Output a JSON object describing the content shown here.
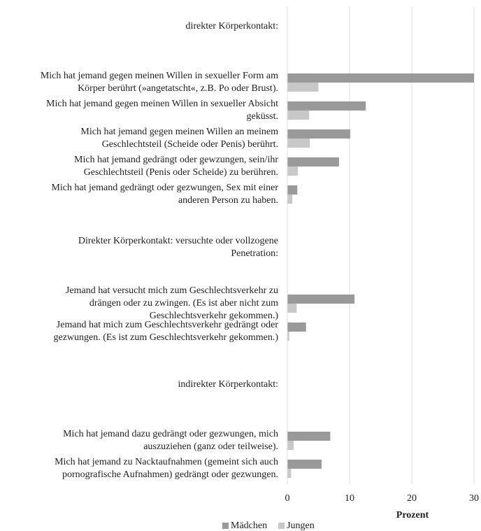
{
  "chart_data": {
    "type": "hbar",
    "categories": [
      "direkter Körperkontakt:",
      "Mich hat jemand gegen meinen Willen in sexueller Form am\nKörper berührt (»angetatscht«, z.B. Po oder Brust).",
      "Mich hat jemand gegen meinen Willen in sexueller Absicht\ngeküsst.",
      "Mich hat jemand gegen meinen Willen an meinem\nGeschlechtsteil (Scheide oder Penis) berührt.",
      "Mich hat jemand gedrängt oder gewzungen, sein/ihr\nGeschlechtsteil (Penis oder Scheide) zu berühren.",
      "Mich hat jemand gedrängt oder gezwungen, Sex mit einer\nanderen Person zu haben.",
      "Direkter Körperkontakt: versuchte oder vollzogene\nPenetration:",
      "Jemand hat versucht mich zum Geschlechtsverkehr zu\ndrängen oder zu zwingen. (Es ist aber nicht zum\nGeschlechtsverkehr gekommen.)",
      "Jemand hat mich zum Geschlechtsverkehr gedrängt oder\ngezwungen. (Es ist zum Geschlechtsverkehr gekommen.)",
      "indirekter Körperkontakt:",
      "Mich hat jemand dazu gedrängt oder gezwungen, mich\nauszuziehen (ganz oder teilweise).",
      "Mich hat jemand zu Nacktaufnahmen (gemeint sich auch\npornografische Aufnahmen) gedrängt oder gezwungen."
    ],
    "series": [
      {
        "name": "Mädchen",
        "color": "#999999",
        "values": [
          null,
          30,
          12.6,
          10.1,
          8.3,
          1.6,
          null,
          10.8,
          3.0,
          null,
          6.9,
          5.5
        ]
      },
      {
        "name": "Jungen",
        "color": "#c8c8c8",
        "values": [
          null,
          5,
          3.5,
          3.6,
          1.7,
          0.8,
          null,
          1.5,
          0.3,
          null,
          1.0,
          0.6
        ]
      }
    ],
    "xlabel": "Prozent",
    "xlim": [
      0,
      30
    ],
    "xticks": [
      0,
      10,
      20,
      30
    ],
    "grid": true,
    "legend": "bottom"
  }
}
